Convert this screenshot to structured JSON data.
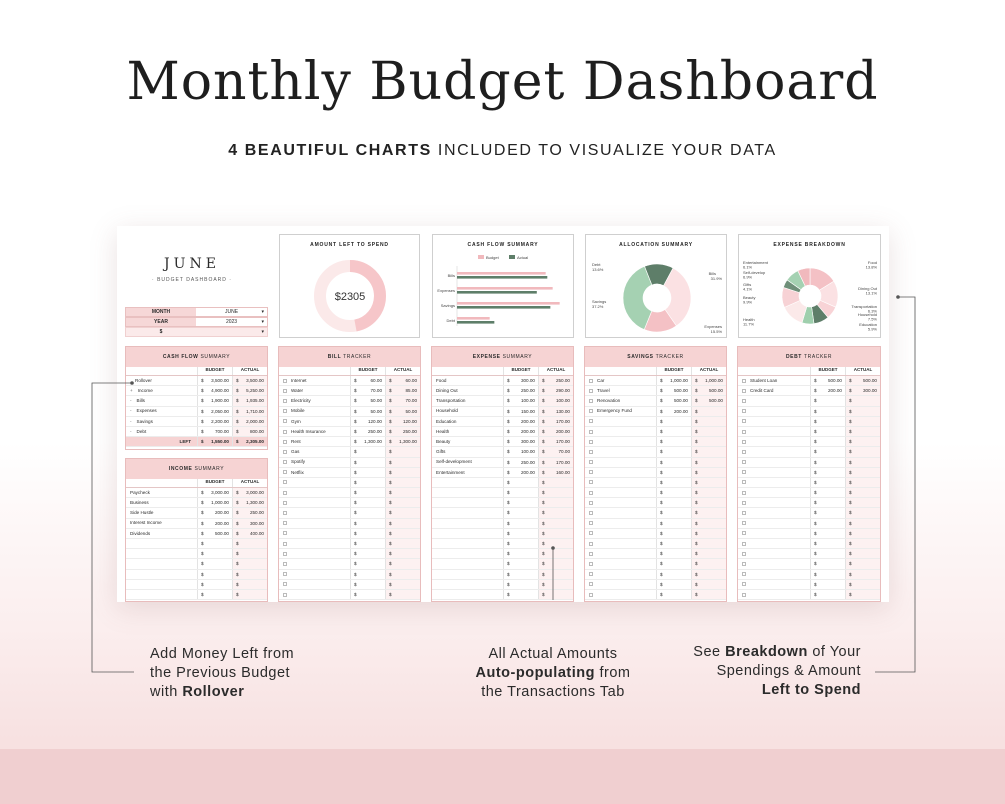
{
  "header": {
    "title": "Monthly Budget Dashboard",
    "subtitle_bold": "4 BEAUTIFUL CHARTS",
    "subtitle_rest": " INCLUDED TO VISUALIZE YOUR DATA"
  },
  "dashboard": {
    "month_title": "JUNE",
    "subtitle": "· BUDGET DASHBOARD ·",
    "month_label": "MONTH",
    "month_value": "JUNE",
    "year_label": "YEAR",
    "year_value": "2023",
    "currency_symbol": "$"
  },
  "charts": {
    "amount_left": {
      "title": "AMOUNT LEFT TO SPEND",
      "value": "$2305",
      "fraction_left": 0.47
    },
    "cash_flow": {
      "title": "CASH FLOW SUMMARY",
      "legend": [
        "Budget",
        "Actual"
      ],
      "categories": [
        "Bills",
        "Expenses",
        "Savings",
        "Debt"
      ]
    },
    "allocation": {
      "title": "ALLOCATION SUMMARY",
      "labels": [
        {
          "name": "Debt",
          "pct": "13.6%"
        },
        {
          "name": "Bills",
          "pct": "31.9%"
        },
        {
          "name": "Savings",
          "pct": "37.2%"
        },
        {
          "name": "Expenses",
          "pct": "15.5%"
        }
      ]
    },
    "expense_breakdown": {
      "title": "EXPENSE BREAKDOWN",
      "labels": [
        {
          "name": "Entertainment",
          "pct": "6.1%"
        },
        {
          "name": "Self-develop",
          "pct": "6.9%"
        },
        {
          "name": "Gifts",
          "pct": "4.1%"
        },
        {
          "name": "Beauty",
          "pct": "9.9%"
        },
        {
          "name": "Health",
          "pct": "11.7%"
        },
        {
          "name": "Food",
          "pct": "13.8%"
        },
        {
          "name": "Dining Out",
          "pct": "13.1%"
        },
        {
          "name": "Transportation",
          "pct": "6.3%"
        },
        {
          "name": "Household",
          "pct": "7.5%"
        },
        {
          "name": "Education",
          "pct": "5.9%"
        }
      ]
    }
  },
  "chart_data": [
    {
      "type": "pie",
      "title": "AMOUNT LEFT TO SPEND",
      "values": [
        2305
      ],
      "center_label": "$2305"
    },
    {
      "type": "bar",
      "title": "CASH FLOW SUMMARY",
      "categories": [
        "Bills",
        "Expenses",
        "Savings",
        "Debt"
      ],
      "series": [
        {
          "name": "Budget",
          "values": [
            1900,
            2050,
            2200,
            700
          ]
        },
        {
          "name": "Actual",
          "values": [
            1935,
            1710,
            2000,
            800
          ]
        }
      ]
    },
    {
      "type": "pie",
      "title": "ALLOCATION SUMMARY",
      "categories": [
        "Debt",
        "Bills",
        "Savings",
        "Expenses"
      ],
      "values": [
        13.6,
        31.9,
        37.2,
        15.5
      ]
    },
    {
      "type": "pie",
      "title": "EXPENSE BREAKDOWN",
      "categories": [
        "Food",
        "Dining Out",
        "Transportation",
        "Household",
        "Education",
        "Health",
        "Beauty",
        "Gifts",
        "Self-develop",
        "Entertainment"
      ],
      "values": [
        13.8,
        13.1,
        6.3,
        7.5,
        5.9,
        11.7,
        9.9,
        4.1,
        6.9,
        6.1
      ]
    }
  ],
  "tables": {
    "col_budget": "BUDGET",
    "col_actual": "ACTUAL",
    "cash_flow": {
      "title": "CASH FLOW",
      "title_light": "SUMMARY",
      "rows": [
        {
          "name": "Rollover",
          "budget": "3,500.00",
          "actual": "3,500.00"
        },
        {
          "name": "Income",
          "budget": "4,900.00",
          "actual": "5,250.00"
        },
        {
          "name": "Bills",
          "budget": "1,900.00",
          "actual": "1,935.00"
        },
        {
          "name": "Expenses",
          "budget": "2,050.00",
          "actual": "1,710.00"
        },
        {
          "name": "Savings",
          "budget": "2,200.00",
          "actual": "2,000.00"
        },
        {
          "name": "Debt",
          "budget": "700.00",
          "actual": "800.00"
        }
      ],
      "left_label": "LEFT",
      "left_budget": "1,550.00",
      "left_actual": "2,305.00"
    },
    "income": {
      "title": "INCOME",
      "title_light": "SUMMARY",
      "rows": [
        {
          "name": "Paycheck",
          "budget": "3,000.00",
          "actual": "3,000.00"
        },
        {
          "name": "Business",
          "budget": "1,000.00",
          "actual": "1,300.00"
        },
        {
          "name": "Side Hustle",
          "budget": "200.00",
          "actual": "250.00"
        },
        {
          "name": "Interest Income",
          "budget": "200.00",
          "actual": "300.00"
        },
        {
          "name": "Dividends",
          "budget": "500.00",
          "actual": "400.00"
        }
      ]
    },
    "bills": {
      "title": "BILL",
      "title_light": "TRACKER",
      "rows": [
        {
          "name": "Internet",
          "budget": "60.00",
          "actual": "60.00"
        },
        {
          "name": "Water",
          "budget": "70.00",
          "actual": "85.00"
        },
        {
          "name": "Electricity",
          "budget": "50.00",
          "actual": "70.00"
        },
        {
          "name": "Mobile",
          "budget": "50.00",
          "actual": "50.00"
        },
        {
          "name": "Gym",
          "budget": "120.00",
          "actual": "120.00"
        },
        {
          "name": "Health Insurance",
          "budget": "250.00",
          "actual": "250.00"
        },
        {
          "name": "Rent",
          "budget": "1,300.00",
          "actual": "1,300.00"
        },
        {
          "name": "Gas",
          "budget": "",
          "actual": ""
        },
        {
          "name": "Spotify",
          "budget": "",
          "actual": ""
        },
        {
          "name": "Netflix",
          "budget": "",
          "actual": ""
        }
      ]
    },
    "expenses": {
      "title": "EXPENSE",
      "title_light": "SUMMARY",
      "rows": [
        {
          "name": "Food",
          "budget": "300.00",
          "actual": "250.00"
        },
        {
          "name": "Dining Out",
          "budget": "250.00",
          "actual": "290.00"
        },
        {
          "name": "Transportation",
          "budget": "100.00",
          "actual": "100.00"
        },
        {
          "name": "Household",
          "budget": "150.00",
          "actual": "130.00"
        },
        {
          "name": "Education",
          "budget": "200.00",
          "actual": "170.00"
        },
        {
          "name": "Health",
          "budget": "200.00",
          "actual": "200.00"
        },
        {
          "name": "Beauty",
          "budget": "300.00",
          "actual": "170.00"
        },
        {
          "name": "Gifts",
          "budget": "100.00",
          "actual": "70.00"
        },
        {
          "name": "Self-development",
          "budget": "250.00",
          "actual": "170.00"
        },
        {
          "name": "Entertainment",
          "budget": "200.00",
          "actual": "160.00"
        }
      ]
    },
    "savings": {
      "title": "SAVINGS",
      "title_light": "TRACKER",
      "rows": [
        {
          "name": "Car",
          "budget": "1,000.00",
          "actual": "1,000.00"
        },
        {
          "name": "Travel",
          "budget": "500.00",
          "actual": "500.00"
        },
        {
          "name": "Renovation",
          "budget": "500.00",
          "actual": "500.00"
        },
        {
          "name": "Emergency Fund",
          "budget": "200.00",
          "actual": ""
        }
      ]
    },
    "debt": {
      "title": "DEBT",
      "title_light": "TRACKER",
      "rows": [
        {
          "name": "Student Loan",
          "budget": "500.00",
          "actual": "500.00"
        },
        {
          "name": "Credit Card",
          "budget": "200.00",
          "actual": "300.00"
        }
      ]
    }
  },
  "callouts": {
    "left": {
      "l1": "Add Money Left from",
      "l2": "the Previous Budget",
      "l3a": "with ",
      "l3b": "Rollover"
    },
    "middle": {
      "l1": "All Actual Amounts",
      "l2a": "Auto-populating",
      "l2b": " from",
      "l3": "the Transactions Tab"
    },
    "right": {
      "l1a": "See ",
      "l1b": "Breakdown",
      "l1c": " of Your",
      "l2": "Spendings & Amount",
      "l3": "Left to Spend"
    }
  },
  "colors": {
    "pink": "#f6d3d3",
    "rose": "#f1b9bd",
    "sage": "#9fcfad",
    "dark_green": "#5e7e69",
    "light_pink": "#fbe3e3"
  }
}
